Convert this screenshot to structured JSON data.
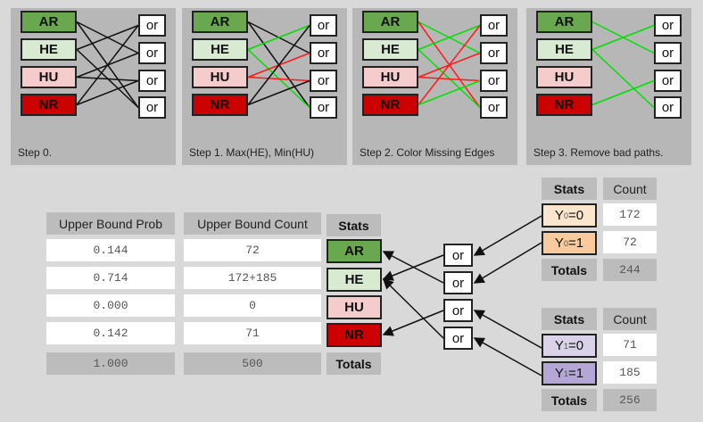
{
  "colors": {
    "AR": "#6aa84f",
    "HE": "#d9ead3",
    "HU": "#f4cccc",
    "NR": "#cc0000",
    "Y0_0": "#fce5cd",
    "Y0_1": "#f9cb9c",
    "Y1_0": "#d9d2e9",
    "Y1_1": "#b4a7d6",
    "green": "#00e000",
    "red": "#ff1a1a",
    "black": "#111111"
  },
  "nodes": [
    "AR",
    "HE",
    "HU",
    "NR"
  ],
  "or_label": "or",
  "steps": [
    {
      "label": "Step 0.",
      "edges": [
        [
          "AR",
          2,
          "black"
        ],
        [
          "AR",
          4,
          "black"
        ],
        [
          "HE",
          1,
          "black"
        ],
        [
          "HE",
          4,
          "black"
        ],
        [
          "HU",
          2,
          "black"
        ],
        [
          "HU",
          3,
          "black"
        ],
        [
          "NR",
          1,
          "black"
        ],
        [
          "NR",
          3,
          "black"
        ]
      ]
    },
    {
      "label": "Step 1. Max(HE), Min(HU)",
      "edges": [
        [
          "AR",
          2,
          "black"
        ],
        [
          "AR",
          4,
          "black"
        ],
        [
          "HE",
          1,
          "green"
        ],
        [
          "HE",
          4,
          "green"
        ],
        [
          "HU",
          2,
          "red"
        ],
        [
          "HU",
          3,
          "red"
        ],
        [
          "NR",
          1,
          "black"
        ],
        [
          "NR",
          3,
          "black"
        ]
      ]
    },
    {
      "label": "Step 2. Color Missing Edges",
      "edges": [
        [
          "AR",
          2,
          "green"
        ],
        [
          "AR",
          4,
          "red"
        ],
        [
          "HE",
          1,
          "green"
        ],
        [
          "HE",
          4,
          "green"
        ],
        [
          "HU",
          2,
          "red"
        ],
        [
          "HU",
          3,
          "red"
        ],
        [
          "NR",
          1,
          "red"
        ],
        [
          "NR",
          3,
          "green"
        ]
      ]
    },
    {
      "label": "Step 3. Remove bad paths.",
      "edges": [
        [
          "AR",
          2,
          "green"
        ],
        [
          "HE",
          1,
          "green"
        ],
        [
          "HE",
          4,
          "green"
        ],
        [
          "NR",
          3,
          "green"
        ]
      ]
    }
  ],
  "bound_table": {
    "prob_header": "Upper Bound Prob",
    "count_header": "Upper Bound Count",
    "stats_header": "Stats",
    "totals_label": "Totals",
    "rows": [
      {
        "stat": "AR",
        "prob": "0.144",
        "count": "72"
      },
      {
        "stat": "HE",
        "prob": "0.714",
        "count": "172+185"
      },
      {
        "stat": "HU",
        "prob": "0.000",
        "count": "0"
      },
      {
        "stat": "NR",
        "prob": "0.142",
        "count": "71"
      }
    ],
    "total_prob": "1.000",
    "total_count": "500"
  },
  "y0_table": {
    "stats_header": "Stats",
    "count_header": "Count",
    "rows": [
      {
        "var": "Y",
        "sub": "0",
        "eq": "=0",
        "count": "172"
      },
      {
        "var": "Y",
        "sub": "0",
        "eq": "=1",
        "count": "72"
      }
    ],
    "totals_label": "Totals",
    "total": "244"
  },
  "y1_table": {
    "stats_header": "Stats",
    "count_header": "Count",
    "rows": [
      {
        "var": "Y",
        "sub": "1",
        "eq": "=0",
        "count": "71"
      },
      {
        "var": "Y",
        "sub": "1",
        "eq": "=1",
        "count": "185"
      }
    ],
    "totals_label": "Totals",
    "total": "256"
  },
  "flow": [
    [
      "Y0_0",
      1
    ],
    [
      "Y0_1",
      2
    ],
    [
      "Y1_0",
      3
    ],
    [
      "Y1_1",
      4
    ],
    [
      1,
      "HE"
    ],
    [
      2,
      "AR"
    ],
    [
      3,
      "NR"
    ],
    [
      4,
      "HE"
    ]
  ]
}
